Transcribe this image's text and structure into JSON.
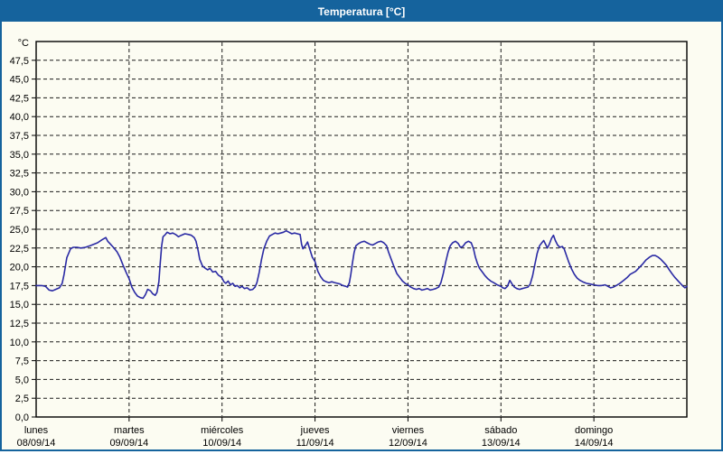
{
  "title": "Temperatura [°C]",
  "colors": {
    "title_bar": "#15639d",
    "title_text": "#ffffff",
    "frame_border": "#15639d",
    "background": "#fcfcf2",
    "grid": "#1a1a1a",
    "axis": "#000000",
    "line": "#2a2aa4"
  },
  "chart_data": {
    "type": "line",
    "title": "Temperatura [°C]",
    "ylabel": "°C",
    "xlabel": "",
    "grid": "dashed",
    "legend": "none",
    "y_axis": {
      "unit": "°C",
      "min": 0,
      "max": 50,
      "step": 2.5,
      "decimal_separator": ",",
      "tick_labels_from": 0.0,
      "tick_labels_to": 47.5
    },
    "x_axis": {
      "days": [
        {
          "name": "lunes",
          "date": "08/09/14"
        },
        {
          "name": "martes",
          "date": "09/09/14"
        },
        {
          "name": "miércoles",
          "date": "10/09/14"
        },
        {
          "name": "jueves",
          "date": "11/09/14"
        },
        {
          "name": "viernes",
          "date": "12/09/14"
        },
        {
          "name": "sábado",
          "date": "13/09/14"
        },
        {
          "name": "domingo",
          "date": "14/09/14"
        }
      ]
    },
    "series": [
      {
        "name": "Temperatura",
        "points": [
          [
            0.0,
            17.5
          ],
          [
            0.06,
            17.5
          ],
          [
            0.1,
            17.4
          ],
          [
            0.14,
            16.9
          ],
          [
            0.175,
            16.8
          ],
          [
            0.21,
            17.0
          ],
          [
            0.25,
            17.2
          ],
          [
            0.28,
            17.8
          ],
          [
            0.3,
            19.0
          ],
          [
            0.33,
            21.2
          ],
          [
            0.37,
            22.4
          ],
          [
            0.4,
            22.6
          ],
          [
            0.44,
            22.6
          ],
          [
            0.48,
            22.5
          ],
          [
            0.53,
            22.6
          ],
          [
            0.58,
            22.8
          ],
          [
            0.62,
            23.0
          ],
          [
            0.66,
            23.2
          ],
          [
            0.71,
            23.6
          ],
          [
            0.75,
            23.9
          ],
          [
            0.77,
            23.4
          ],
          [
            0.8,
            23.0
          ],
          [
            0.83,
            22.6
          ],
          [
            0.87,
            22.0
          ],
          [
            0.9,
            21.3
          ],
          [
            0.935,
            20.2
          ],
          [
            0.97,
            19.2
          ],
          [
            1.0,
            18.4
          ],
          [
            1.03,
            17.3
          ],
          [
            1.06,
            16.6
          ],
          [
            1.09,
            16.1
          ],
          [
            1.12,
            15.9
          ],
          [
            1.15,
            15.8
          ],
          [
            1.175,
            16.3
          ],
          [
            1.2,
            17.0
          ],
          [
            1.23,
            16.8
          ],
          [
            1.255,
            16.4
          ],
          [
            1.28,
            16.2
          ],
          [
            1.3,
            16.6
          ],
          [
            1.32,
            18.0
          ],
          [
            1.335,
            20.5
          ],
          [
            1.35,
            22.8
          ],
          [
            1.365,
            24.0
          ],
          [
            1.39,
            24.3
          ],
          [
            1.41,
            24.6
          ],
          [
            1.44,
            24.4
          ],
          [
            1.47,
            24.5
          ],
          [
            1.5,
            24.3
          ],
          [
            1.53,
            24.0
          ],
          [
            1.56,
            24.2
          ],
          [
            1.6,
            24.4
          ],
          [
            1.64,
            24.3
          ],
          [
            1.67,
            24.2
          ],
          [
            1.7,
            23.9
          ],
          [
            1.72,
            23.4
          ],
          [
            1.74,
            22.3
          ],
          [
            1.76,
            21.0
          ],
          [
            1.79,
            20.1
          ],
          [
            1.82,
            19.8
          ],
          [
            1.845,
            19.6
          ],
          [
            1.87,
            19.8
          ],
          [
            1.9,
            19.3
          ],
          [
            1.93,
            19.4
          ],
          [
            1.96,
            18.9
          ],
          [
            1.985,
            18.7
          ],
          [
            2.0,
            18.5
          ],
          [
            2.02,
            18.0
          ],
          [
            2.04,
            17.8
          ],
          [
            2.065,
            18.1
          ],
          [
            2.09,
            17.6
          ],
          [
            2.115,
            17.8
          ],
          [
            2.14,
            17.4
          ],
          [
            2.165,
            17.5
          ],
          [
            2.19,
            17.2
          ],
          [
            2.215,
            17.4
          ],
          [
            2.24,
            17.1
          ],
          [
            2.27,
            17.2
          ],
          [
            2.3,
            16.9
          ],
          [
            2.33,
            17.0
          ],
          [
            2.355,
            17.3
          ],
          [
            2.375,
            17.9
          ],
          [
            2.4,
            19.3
          ],
          [
            2.425,
            21.0
          ],
          [
            2.45,
            22.4
          ],
          [
            2.48,
            23.4
          ],
          [
            2.51,
            24.1
          ],
          [
            2.54,
            24.3
          ],
          [
            2.57,
            24.5
          ],
          [
            2.6,
            24.4
          ],
          [
            2.63,
            24.5
          ],
          [
            2.66,
            24.6
          ],
          [
            2.69,
            24.8
          ],
          [
            2.72,
            24.6
          ],
          [
            2.75,
            24.4
          ],
          [
            2.78,
            24.5
          ],
          [
            2.81,
            24.4
          ],
          [
            2.84,
            24.3
          ],
          [
            2.855,
            23.0
          ],
          [
            2.87,
            22.4
          ],
          [
            2.9,
            22.9
          ],
          [
            2.92,
            23.3
          ],
          [
            2.945,
            22.3
          ],
          [
            2.97,
            21.3
          ],
          [
            3.0,
            20.7
          ],
          [
            3.03,
            19.4
          ],
          [
            3.06,
            18.7
          ],
          [
            3.09,
            18.2
          ],
          [
            3.12,
            18.0
          ],
          [
            3.15,
            17.9
          ],
          [
            3.18,
            18.0
          ],
          [
            3.21,
            17.9
          ],
          [
            3.24,
            17.8
          ],
          [
            3.27,
            17.7
          ],
          [
            3.3,
            17.5
          ],
          [
            3.33,
            17.4
          ],
          [
            3.35,
            17.3
          ],
          [
            3.37,
            17.9
          ],
          [
            3.385,
            19.0
          ],
          [
            3.4,
            20.3
          ],
          [
            3.42,
            21.9
          ],
          [
            3.44,
            22.8
          ],
          [
            3.47,
            23.1
          ],
          [
            3.5,
            23.3
          ],
          [
            3.53,
            23.4
          ],
          [
            3.56,
            23.2
          ],
          [
            3.59,
            23.0
          ],
          [
            3.62,
            22.9
          ],
          [
            3.65,
            23.1
          ],
          [
            3.68,
            23.3
          ],
          [
            3.71,
            23.4
          ],
          [
            3.74,
            23.2
          ],
          [
            3.77,
            22.8
          ],
          [
            3.79,
            22.0
          ],
          [
            3.82,
            21.0
          ],
          [
            3.85,
            20.0
          ],
          [
            3.88,
            19.1
          ],
          [
            3.91,
            18.6
          ],
          [
            3.94,
            18.1
          ],
          [
            3.97,
            17.8
          ],
          [
            4.0,
            17.6
          ],
          [
            4.03,
            17.3
          ],
          [
            4.06,
            17.1
          ],
          [
            4.09,
            17.0
          ],
          [
            4.12,
            17.1
          ],
          [
            4.15,
            16.9
          ],
          [
            4.18,
            17.0
          ],
          [
            4.21,
            17.1
          ],
          [
            4.24,
            16.9
          ],
          [
            4.27,
            17.0
          ],
          [
            4.3,
            17.1
          ],
          [
            4.33,
            17.3
          ],
          [
            4.355,
            17.9
          ],
          [
            4.38,
            19.1
          ],
          [
            4.405,
            20.6
          ],
          [
            4.43,
            21.9
          ],
          [
            4.455,
            22.8
          ],
          [
            4.48,
            23.2
          ],
          [
            4.51,
            23.4
          ],
          [
            4.54,
            23.1
          ],
          [
            4.565,
            22.6
          ],
          [
            4.59,
            22.7
          ],
          [
            4.62,
            23.2
          ],
          [
            4.65,
            23.4
          ],
          [
            4.68,
            23.2
          ],
          [
            4.705,
            22.4
          ],
          [
            4.725,
            21.3
          ],
          [
            4.745,
            20.5
          ],
          [
            4.77,
            19.8
          ],
          [
            4.8,
            19.3
          ],
          [
            4.83,
            18.8
          ],
          [
            4.86,
            18.4
          ],
          [
            4.89,
            18.1
          ],
          [
            4.92,
            17.9
          ],
          [
            4.96,
            17.6
          ],
          [
            5.0,
            17.4
          ],
          [
            5.02,
            17.2
          ],
          [
            5.045,
            17.1
          ],
          [
            5.07,
            17.4
          ],
          [
            5.095,
            18.2
          ],
          [
            5.12,
            17.7
          ],
          [
            5.145,
            17.3
          ],
          [
            5.17,
            17.1
          ],
          [
            5.2,
            17.0
          ],
          [
            5.23,
            17.1
          ],
          [
            5.26,
            17.2
          ],
          [
            5.29,
            17.3
          ],
          [
            5.315,
            17.7
          ],
          [
            5.34,
            18.8
          ],
          [
            5.365,
            20.3
          ],
          [
            5.39,
            21.8
          ],
          [
            5.415,
            22.8
          ],
          [
            5.44,
            23.2
          ],
          [
            5.46,
            23.5
          ],
          [
            5.48,
            23.0
          ],
          [
            5.5,
            22.5
          ],
          [
            5.52,
            23.0
          ],
          [
            5.545,
            23.8
          ],
          [
            5.565,
            24.2
          ],
          [
            5.585,
            23.5
          ],
          [
            5.61,
            22.9
          ],
          [
            5.635,
            22.6
          ],
          [
            5.66,
            22.7
          ],
          [
            5.68,
            22.4
          ],
          [
            5.705,
            21.5
          ],
          [
            5.73,
            20.6
          ],
          [
            5.76,
            19.7
          ],
          [
            5.79,
            19.0
          ],
          [
            5.82,
            18.5
          ],
          [
            5.85,
            18.2
          ],
          [
            5.88,
            18.0
          ],
          [
            5.92,
            17.8
          ],
          [
            5.96,
            17.7
          ],
          [
            6.0,
            17.6
          ],
          [
            6.04,
            17.5
          ],
          [
            6.08,
            17.5
          ],
          [
            6.12,
            17.6
          ],
          [
            6.15,
            17.4
          ],
          [
            6.18,
            17.2
          ],
          [
            6.21,
            17.3
          ],
          [
            6.24,
            17.5
          ],
          [
            6.28,
            17.8
          ],
          [
            6.32,
            18.2
          ],
          [
            6.36,
            18.6
          ],
          [
            6.39,
            19.0
          ],
          [
            6.42,
            19.2
          ],
          [
            6.45,
            19.4
          ],
          [
            6.48,
            19.8
          ],
          [
            6.52,
            20.3
          ],
          [
            6.56,
            20.9
          ],
          [
            6.6,
            21.3
          ],
          [
            6.63,
            21.5
          ],
          [
            6.66,
            21.5
          ],
          [
            6.69,
            21.3
          ],
          [
            6.72,
            21.0
          ],
          [
            6.75,
            20.6
          ],
          [
            6.78,
            20.2
          ],
          [
            6.81,
            19.6
          ],
          [
            6.84,
            19.1
          ],
          [
            6.87,
            18.6
          ],
          [
            6.9,
            18.2
          ],
          [
            6.93,
            17.8
          ],
          [
            6.96,
            17.4
          ],
          [
            6.98,
            17.2
          ],
          [
            7.0,
            17.4
          ]
        ]
      }
    ]
  }
}
